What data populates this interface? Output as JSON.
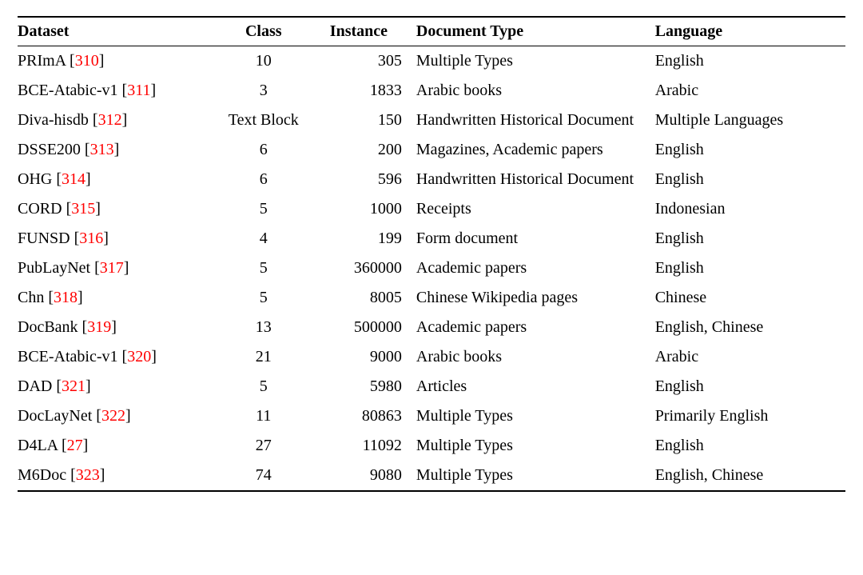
{
  "table": {
    "columns": {
      "dataset": "Dataset",
      "class": "Class",
      "instance": "Instance",
      "doctype": "Document Type",
      "language": "Language"
    },
    "cite_color": "#ff0000",
    "border_color": "#000000",
    "background_color": "#ffffff",
    "font_family": "Times New Roman",
    "base_fontsize_pt": 15,
    "col_widths_pct": [
      24,
      12,
      11,
      30,
      23
    ],
    "col_align": [
      "left",
      "center",
      "right",
      "left",
      "left"
    ],
    "rows": [
      {
        "name": "PRImA",
        "extra_space": true,
        "cite": "310",
        "class": "10",
        "instance": "305",
        "doctype": "Multiple Types",
        "language": "English"
      },
      {
        "name": "BCE-Atabic-v1",
        "extra_space": false,
        "cite": "311",
        "class": "3",
        "instance": "1833",
        "doctype": "Arabic books",
        "language": "Arabic"
      },
      {
        "name": "Diva-hisdb",
        "extra_space": false,
        "cite": "312",
        "class": "Text Block",
        "instance": "150",
        "doctype": "Handwritten Historical Document",
        "language": "Multiple Languages"
      },
      {
        "name": "DSSE200",
        "extra_space": false,
        "cite": "313",
        "class": "6",
        "instance": "200",
        "doctype": "Magazines, Academic papers",
        "language": "English"
      },
      {
        "name": "OHG",
        "extra_space": false,
        "cite": "314",
        "class": "6",
        "instance": "596",
        "doctype": "Handwritten Historical Document",
        "language": "English"
      },
      {
        "name": "CORD",
        "extra_space": false,
        "cite": "315",
        "class": "5",
        "instance": "1000",
        "doctype": "Receipts",
        "language": "Indonesian"
      },
      {
        "name": "FUNSD",
        "extra_space": false,
        "cite": "316",
        "class": "4",
        "instance": "199",
        "doctype": "Form document",
        "language": "English"
      },
      {
        "name": "PubLayNet",
        "extra_space": false,
        "cite": "317",
        "class": "5",
        "instance": "360000",
        "doctype": "Academic papers",
        "language": "English"
      },
      {
        "name": "Chn",
        "extra_space": false,
        "cite": "318",
        "class": "5",
        "instance": "8005",
        "doctype": "Chinese Wikipedia pages",
        "language": "Chinese"
      },
      {
        "name": "DocBank",
        "extra_space": false,
        "cite": "319",
        "class": "13",
        "instance": "500000",
        "doctype": "Academic papers",
        "language": "English, Chinese"
      },
      {
        "name": "BCE-Atabic-v1",
        "extra_space": false,
        "cite": "320",
        "class": "21",
        "instance": "9000",
        "doctype": "Arabic books",
        "language": "Arabic"
      },
      {
        "name": "DAD",
        "extra_space": false,
        "cite": "321",
        "class": "5",
        "instance": "5980",
        "doctype": "Articles",
        "language": "English"
      },
      {
        "name": "DocLayNet",
        "extra_space": false,
        "cite": "322",
        "class": "11",
        "instance": "80863",
        "doctype": "Multiple Types",
        "language": "Primarily English"
      },
      {
        "name": "D4LA",
        "extra_space": false,
        "cite": "27",
        "class": "27",
        "instance": "11092",
        "doctype": "Multiple Types",
        "language": "English"
      },
      {
        "name": "M6Doc",
        "extra_space": false,
        "cite": "323",
        "class": "74",
        "instance": "9080",
        "doctype": "Multiple Types",
        "language": "English, Chinese"
      }
    ]
  }
}
